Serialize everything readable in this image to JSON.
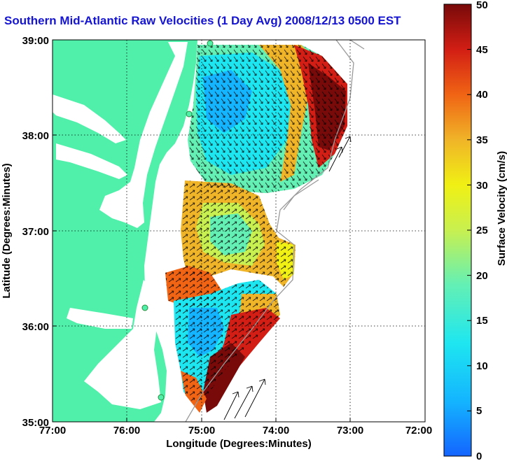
{
  "title": "Southern Mid-Atlantic Raw Velocities (1 Day Avg) 2008/12/13 0500 EST",
  "xlabel": "Longitude (Degrees:Minutes)",
  "ylabel": "Latitude (Degrees:Minutes)",
  "x_ticks": [
    "77:00",
    "76:00",
    "75:00",
    "74:00",
    "73:00",
    "72:00"
  ],
  "y_ticks": [
    "39:00",
    "38:00",
    "37:00",
    "36:00",
    "35:00"
  ],
  "colorbar": {
    "label": "Surface Velocity (cm/s)",
    "ticks": [
      "0",
      "5",
      "10",
      "15",
      "20",
      "25",
      "30",
      "35",
      "40",
      "45",
      "50"
    ]
  },
  "colors": {
    "land": "#50f0aa",
    "title": "#1414d2",
    "grid": "#000000"
  }
}
